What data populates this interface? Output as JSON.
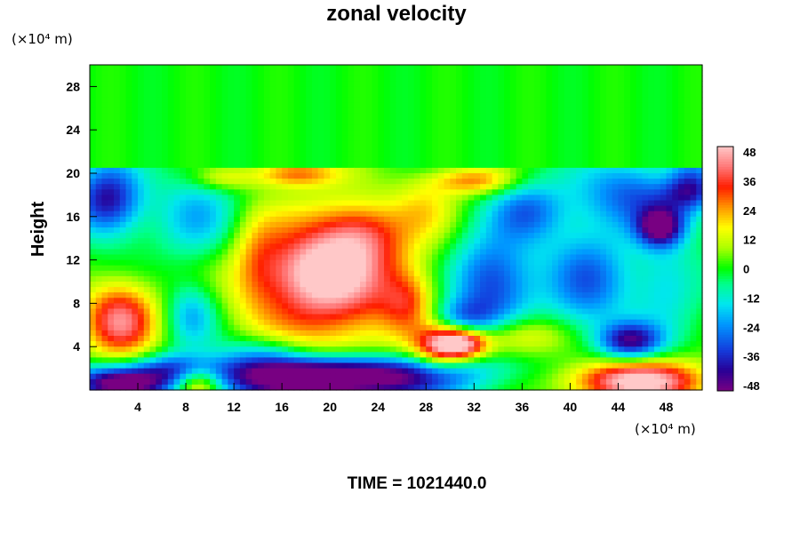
{
  "chart_data": {
    "type": "heatmap",
    "title": "zonal velocity",
    "ylabel": "Height",
    "xlabel": "",
    "x_unit": "(×10⁴ m)",
    "y_unit": "(×10⁴ m)",
    "footer": "TIME = 1021440.0",
    "xlim": [
      0,
      51
    ],
    "ylim": [
      0,
      30
    ],
    "x_ticks": [
      4,
      8,
      12,
      16,
      20,
      24,
      28,
      32,
      36,
      40,
      44,
      48
    ],
    "y_ticks": [
      4,
      8,
      12,
      16,
      20,
      24,
      28
    ],
    "colorbar": {
      "min": -48,
      "max": 48,
      "ticks": [
        48,
        36,
        24,
        12,
        0,
        -12,
        -24,
        -36,
        -48
      ],
      "colormap": "rainbow (purple-blue-cyan-green-yellow-red-pink)"
    },
    "background_value": 0,
    "features": [
      {
        "x": 20,
        "y": 10,
        "sx": 5,
        "sy": 4.5,
        "v": 42
      },
      {
        "x": 19,
        "y": 11,
        "sx": 2.5,
        "sy": 2,
        "v": 16
      },
      {
        "x": 22.5,
        "y": 14.5,
        "sx": 2.5,
        "sy": 2,
        "v": 20
      },
      {
        "x": 26.5,
        "y": 8,
        "sx": 1.5,
        "sy": 2,
        "v": 18
      },
      {
        "x": 2.5,
        "y": 6.5,
        "sx": 2.2,
        "sy": 2.5,
        "v": 40
      },
      {
        "x": 9,
        "y": 0.8,
        "sx": 1.5,
        "sy": 1.2,
        "v": 34
      },
      {
        "x": 45.5,
        "y": 0.8,
        "sx": 4,
        "sy": 1.4,
        "v": 52
      },
      {
        "x": 31,
        "y": 4.3,
        "sx": 1.5,
        "sy": 1,
        "v": 46
      },
      {
        "x": 29,
        "y": 4,
        "sx": 1.5,
        "sy": 1.5,
        "v": 28
      },
      {
        "x": 35.5,
        "y": 5,
        "sx": 3,
        "sy": 1.3,
        "v": 20
      },
      {
        "x": 17,
        "y": 20,
        "sx": 2.5,
        "sy": 0.9,
        "v": 26
      },
      {
        "x": 32,
        "y": 19.3,
        "sx": 2.5,
        "sy": 0.9,
        "v": 24
      },
      {
        "x": 11,
        "y": 19.5,
        "sx": 1.8,
        "sy": 0.8,
        "v": 14
      },
      {
        "x": 49.5,
        "y": 19.5,
        "sx": 1.8,
        "sy": 1,
        "v": 14
      },
      {
        "x": 20,
        "y": 0.8,
        "sx": 7,
        "sy": 1.3,
        "v": -58
      },
      {
        "x": 20,
        "y": 2,
        "sx": 9,
        "sy": 1,
        "v": -20
      },
      {
        "x": 2.5,
        "y": 0.6,
        "sx": 3,
        "sy": 1.1,
        "v": -50
      },
      {
        "x": 7.5,
        "y": 2,
        "sx": 2.2,
        "sy": 1,
        "v": -22
      },
      {
        "x": 1.5,
        "y": 17.5,
        "sx": 2,
        "sy": 2.3,
        "v": -40
      },
      {
        "x": 9,
        "y": 16,
        "sx": 2.5,
        "sy": 3,
        "v": -18
      },
      {
        "x": 8.5,
        "y": 7,
        "sx": 1.5,
        "sy": 2,
        "v": -20
      },
      {
        "x": 14.5,
        "y": 3.5,
        "sx": 2.5,
        "sy": 1.2,
        "v": -16
      },
      {
        "x": 33.5,
        "y": 10,
        "sx": 2.5,
        "sy": 3,
        "v": -34
      },
      {
        "x": 31,
        "y": 6.5,
        "sx": 2,
        "sy": 1.3,
        "v": -24
      },
      {
        "x": 36.5,
        "y": 16.5,
        "sx": 2.2,
        "sy": 2,
        "v": -24
      },
      {
        "x": 41.5,
        "y": 10,
        "sx": 2.5,
        "sy": 3.5,
        "v": -26
      },
      {
        "x": 45.5,
        "y": 18,
        "sx": 3.5,
        "sy": 2.3,
        "v": -28
      },
      {
        "x": 47.5,
        "y": 15,
        "sx": 1.3,
        "sy": 1.2,
        "v": -42
      },
      {
        "x": 50,
        "y": 19,
        "sx": 1.5,
        "sy": 1.5,
        "v": -40
      },
      {
        "x": 45,
        "y": 4.5,
        "sx": 1.8,
        "sy": 1.2,
        "v": -40
      },
      {
        "x": 48,
        "y": 10,
        "sx": 2,
        "sy": 3,
        "v": -16
      },
      {
        "x": 28,
        "y": 17,
        "sx": 2,
        "sy": 2,
        "v": 12
      },
      {
        "x": 14,
        "y": 12,
        "sx": 1.5,
        "sy": 3,
        "v": 12
      }
    ]
  }
}
